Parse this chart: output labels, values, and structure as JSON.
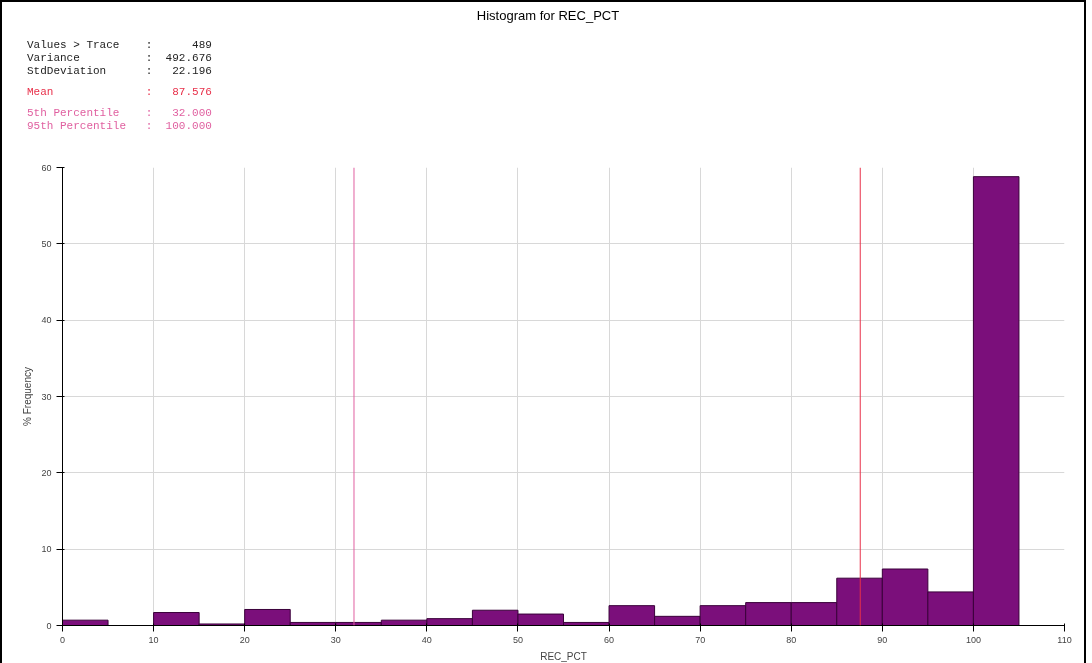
{
  "chart_data": {
    "type": "histogram",
    "title": "Histogram for REC_PCT",
    "xlabel": "REC_PCT",
    "ylabel": "% Frequency",
    "annotations": [
      "Values > Trace    :      489",
      "Variance          :  492.676",
      "StdDeviation      :   22.196",
      "Mean              :   87.576",
      "5th Percentile    :   32.000",
      "95th Percentile   :  100.000"
    ],
    "bins": [
      0,
      5,
      10,
      15,
      20,
      25,
      30,
      35,
      40,
      45,
      50,
      55,
      60,
      65,
      70,
      75,
      80,
      85,
      90,
      95,
      100,
      105
    ],
    "values": [
      0.7,
      0,
      1.7,
      0.2,
      2.1,
      0.4,
      0.4,
      0.7,
      0.9,
      2.0,
      1.5,
      0.4,
      2.6,
      1.2,
      2.6,
      3.0,
      3.0,
      6.2,
      7.4,
      4.4,
      58.8
    ],
    "color": "#7b0f7b",
    "xlim": [
      0,
      110
    ],
    "xticks": [
      0,
      10,
      20,
      30,
      40,
      50,
      60,
      70,
      80,
      90,
      100,
      110
    ],
    "ylim": [
      0,
      60
    ],
    "yticks": [
      0,
      10,
      20,
      30,
      40,
      50,
      60
    ],
    "ref_lines": [
      {
        "axis": "x",
        "value": 32,
        "color": "#e060a0"
      },
      {
        "axis": "x",
        "value": 87.576,
        "color": "#e8304a"
      }
    ],
    "grid": true
  }
}
